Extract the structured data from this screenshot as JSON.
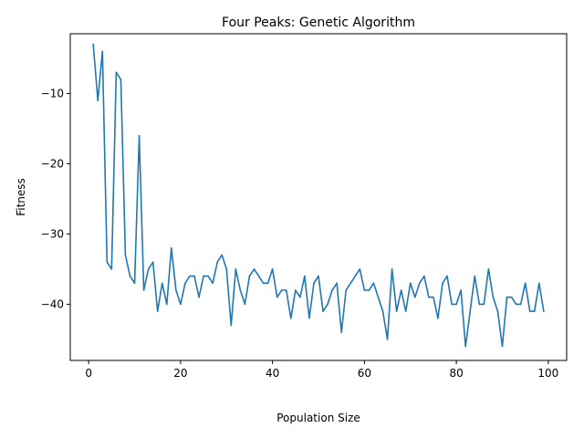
{
  "chart_data": {
    "type": "line",
    "title": "Four Peaks: Genetic Algorithm",
    "xlabel": "Population Size",
    "ylabel": "Fitness",
    "xlim": [
      -4,
      104
    ],
    "ylim": [
      -48,
      -1.5
    ],
    "xticks": [
      0,
      20,
      40,
      60,
      80,
      100
    ],
    "yticks": [
      -10,
      -20,
      -30,
      -40
    ],
    "xtick_labels": [
      "0",
      "20",
      "40",
      "60",
      "80",
      "100"
    ],
    "ytick_labels": [
      "−10",
      "−20",
      "−30",
      "−40"
    ],
    "grid": false,
    "legend": "none",
    "color": "#1f77b4",
    "series": [
      {
        "x": [
          1,
          2,
          3,
          4,
          5,
          6,
          7,
          8,
          9,
          10,
          11,
          12,
          13,
          14,
          15,
          16,
          17,
          18,
          19,
          20,
          21,
          22,
          23,
          24,
          25,
          26,
          27,
          28,
          29,
          30,
          31,
          32,
          33,
          34,
          35,
          36,
          37,
          38,
          39,
          40,
          41,
          42,
          43,
          44,
          45,
          46,
          47,
          48,
          49,
          50,
          51,
          52,
          53,
          54,
          55,
          56,
          57,
          58,
          59,
          60,
          61,
          62,
          63,
          64,
          65,
          66,
          67,
          68,
          69,
          70,
          71,
          72,
          73,
          74,
          75,
          76,
          77,
          78,
          79,
          80,
          81,
          82,
          83,
          84,
          85,
          86,
          87,
          88,
          89,
          90,
          91,
          92,
          93,
          94,
          95,
          96,
          97,
          98,
          99
        ],
        "values": [
          -3,
          -11,
          -4,
          -34,
          -35,
          -7,
          -8,
          -33,
          -36,
          -37,
          -16,
          -38,
          -35,
          -34,
          -41,
          -37,
          -40,
          -32,
          -38,
          -40,
          -37,
          -36,
          -36,
          -39,
          -36,
          -36,
          -37,
          -34,
          -33,
          -35,
          -43,
          -35,
          -38,
          -40,
          -36,
          -35,
          -36,
          -37,
          -37,
          -35,
          -39,
          -38,
          -38,
          -42,
          -38,
          -39,
          -36,
          -42,
          -37,
          -36,
          -41,
          -40,
          -38,
          -37,
          -44,
          -38,
          -37,
          -36,
          -35,
          -38,
          -38,
          -37,
          -39,
          -41,
          -45,
          -35,
          -41,
          -38,
          -41,
          -37,
          -39,
          -37,
          -36,
          -39,
          -39,
          -42,
          -37,
          -36,
          -40,
          -40,
          -38,
          -46,
          -41,
          -36,
          -40,
          -40,
          -35,
          -39,
          -41,
          -46,
          -39,
          -39,
          -40,
          -40,
          -37,
          -41,
          -41,
          -37,
          -41
        ]
      }
    ]
  }
}
